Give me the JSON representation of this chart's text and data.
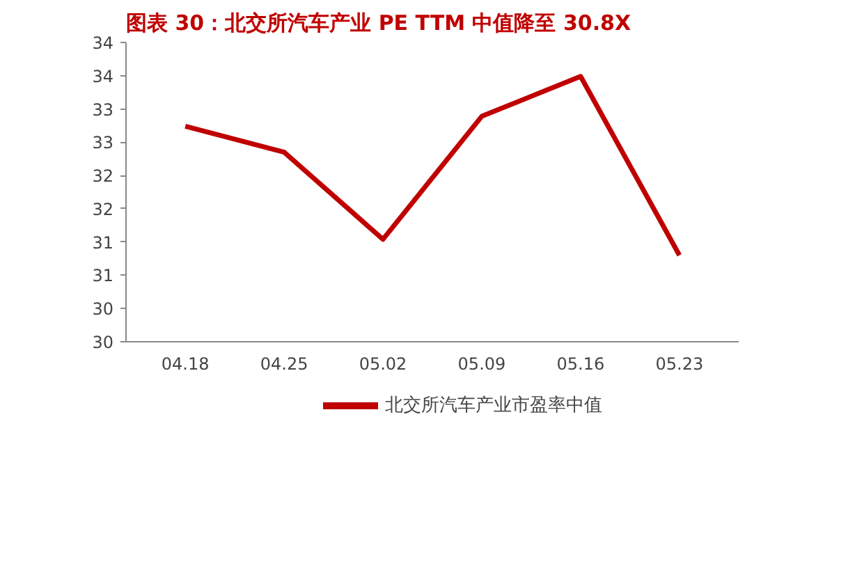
{
  "chart_data": {
    "type": "line",
    "title": "图表 30：北交所汽车产业 PE TTM 中值降至 30.8X",
    "categories": [
      "04.18",
      "04.25",
      "05.02",
      "05.09",
      "05.16",
      "05.23"
    ],
    "series": [
      {
        "name": "北交所汽车产业市盈率中值",
        "color": "#c00000",
        "values": [
          32.74,
          32.35,
          31.04,
          32.89,
          33.49,
          30.8
        ]
      }
    ],
    "ylim": [
      29.5,
      34
    ],
    "yticks": [
      {
        "value": 29.5,
        "label": "30"
      },
      {
        "value": 30,
        "label": "30"
      },
      {
        "value": 30.5,
        "label": "31"
      },
      {
        "value": 31,
        "label": "31"
      },
      {
        "value": 31.5,
        "label": "32"
      },
      {
        "value": 32,
        "label": "32"
      },
      {
        "value": 32.5,
        "label": "33"
      },
      {
        "value": 33,
        "label": "33"
      },
      {
        "value": 33.5,
        "label": "34"
      },
      {
        "value": 34,
        "label": "34"
      }
    ],
    "grid": false,
    "legend": "bottom",
    "marker": "none",
    "line_style": "solid"
  }
}
